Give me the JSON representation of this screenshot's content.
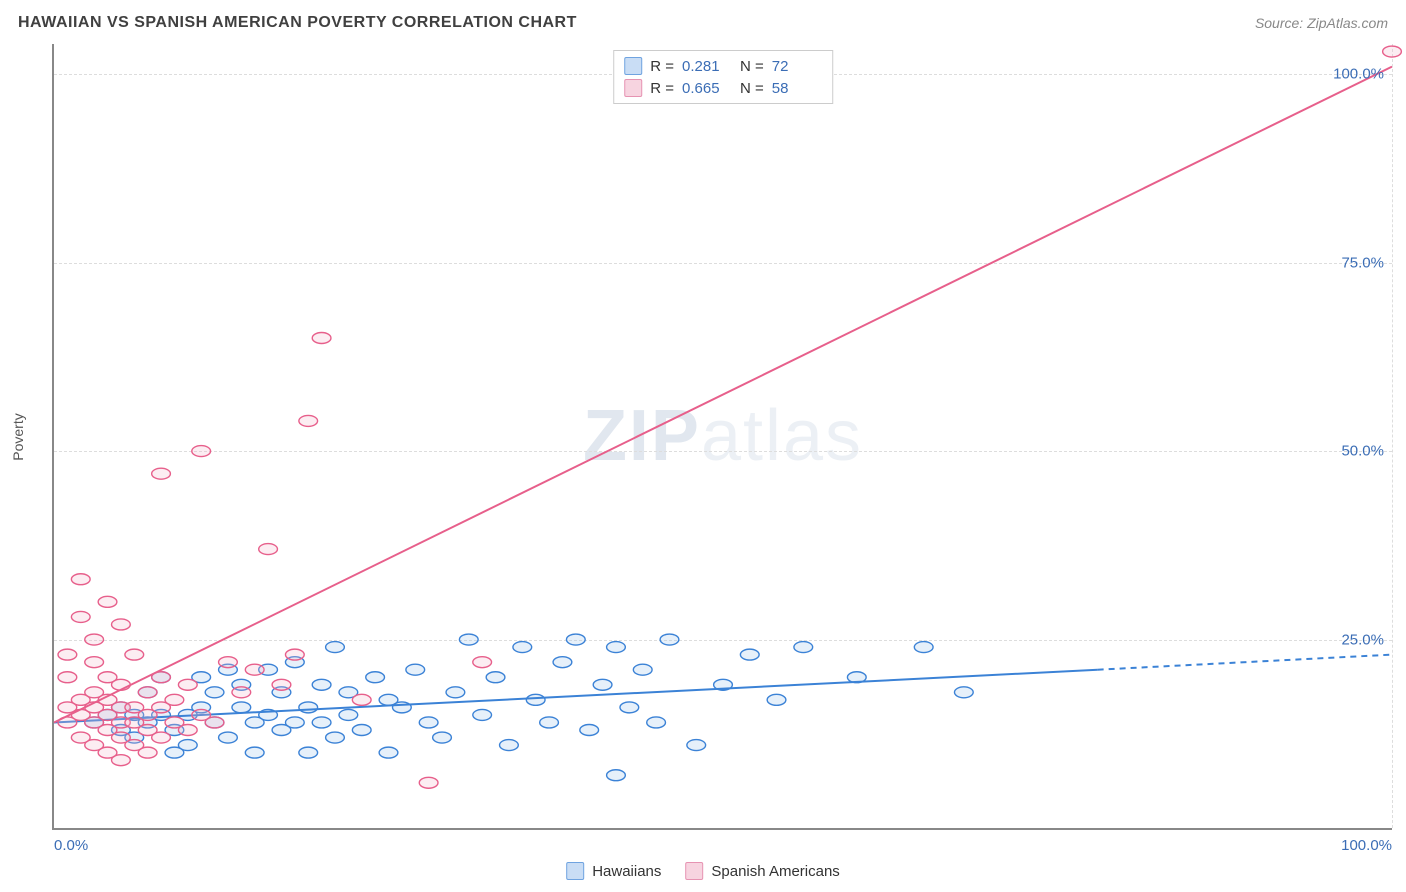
{
  "header": {
    "title": "HAWAIIAN VS SPANISH AMERICAN POVERTY CORRELATION CHART",
    "source": "Source: ZipAtlas.com"
  },
  "ylabel": "Poverty",
  "watermark": {
    "zip": "ZIP",
    "atlas": "atlas"
  },
  "chart": {
    "type": "scatter",
    "xlim": [
      0,
      100
    ],
    "ylim": [
      0,
      104
    ],
    "x_ticks": [
      {
        "value": 0,
        "label": "0.0%"
      },
      {
        "value": 100,
        "label": "100.0%"
      }
    ],
    "y_ticks": [
      {
        "value": 25,
        "label": "25.0%"
      },
      {
        "value": 50,
        "label": "50.0%"
      },
      {
        "value": 75,
        "label": "75.0%"
      },
      {
        "value": 100,
        "label": "100.0%"
      }
    ],
    "grid_color": "#dddddd",
    "grid_dash": "4,4",
    "background_color": "#ffffff",
    "marker_radius": 7,
    "marker_fill_opacity": 0.25,
    "marker_stroke_width": 1.4,
    "trend_line_width": 2
  },
  "series": [
    {
      "key": "hawaiians",
      "label": "Hawaiians",
      "R": "0.281",
      "N": "72",
      "color_stroke": "#3b82d6",
      "color_fill": "#9cc2ec",
      "swatch_fill": "#c9ddf5",
      "swatch_border": "#6fa3e0",
      "trend": {
        "x1": 0,
        "y1": 14,
        "x2": 78,
        "y2": 21,
        "dash_from_x": 78,
        "x3": 100,
        "y3": 23
      },
      "points": [
        [
          3,
          14
        ],
        [
          4,
          15
        ],
        [
          5,
          13
        ],
        [
          5,
          16
        ],
        [
          6,
          15
        ],
        [
          6,
          12
        ],
        [
          7,
          18
        ],
        [
          7,
          14
        ],
        [
          8,
          15
        ],
        [
          8,
          20
        ],
        [
          9,
          13
        ],
        [
          9,
          10
        ],
        [
          10,
          15
        ],
        [
          10,
          11
        ],
        [
          11,
          16
        ],
        [
          11,
          20
        ],
        [
          12,
          14
        ],
        [
          12,
          18
        ],
        [
          13,
          21
        ],
        [
          13,
          12
        ],
        [
          14,
          16
        ],
        [
          14,
          19
        ],
        [
          15,
          14
        ],
        [
          15,
          10
        ],
        [
          16,
          21
        ],
        [
          16,
          15
        ],
        [
          17,
          13
        ],
        [
          17,
          18
        ],
        [
          18,
          14
        ],
        [
          18,
          22
        ],
        [
          19,
          16
        ],
        [
          19,
          10
        ],
        [
          20,
          14
        ],
        [
          20,
          19
        ],
        [
          21,
          12
        ],
        [
          21,
          24
        ],
        [
          22,
          15
        ],
        [
          22,
          18
        ],
        [
          23,
          13
        ],
        [
          24,
          20
        ],
        [
          25,
          10
        ],
        [
          25,
          17
        ],
        [
          26,
          16
        ],
        [
          27,
          21
        ],
        [
          28,
          14
        ],
        [
          29,
          12
        ],
        [
          30,
          18
        ],
        [
          31,
          25
        ],
        [
          32,
          15
        ],
        [
          33,
          20
        ],
        [
          34,
          11
        ],
        [
          35,
          24
        ],
        [
          36,
          17
        ],
        [
          37,
          14
        ],
        [
          38,
          22
        ],
        [
          39,
          25
        ],
        [
          40,
          13
        ],
        [
          41,
          19
        ],
        [
          42,
          24
        ],
        [
          42,
          7
        ],
        [
          43,
          16
        ],
        [
          44,
          21
        ],
        [
          45,
          14
        ],
        [
          46,
          25
        ],
        [
          48,
          11
        ],
        [
          50,
          19
        ],
        [
          52,
          23
        ],
        [
          54,
          17
        ],
        [
          56,
          24
        ],
        [
          60,
          20
        ],
        [
          65,
          24
        ],
        [
          68,
          18
        ]
      ]
    },
    {
      "key": "spanish_americans",
      "label": "Spanish Americans",
      "R": "0.665",
      "N": "58",
      "color_stroke": "#e75f8b",
      "color_fill": "#f5b6cc",
      "swatch_fill": "#f7d4e0",
      "swatch_border": "#e693b2",
      "trend": {
        "x1": 0,
        "y1": 14,
        "x2": 100,
        "y2": 101
      },
      "points": [
        [
          1,
          14
        ],
        [
          1,
          16
        ],
        [
          1,
          20
        ],
        [
          1,
          23
        ],
        [
          2,
          12
        ],
        [
          2,
          15
        ],
        [
          2,
          17
        ],
        [
          2,
          28
        ],
        [
          2,
          33
        ],
        [
          3,
          11
        ],
        [
          3,
          14
        ],
        [
          3,
          16
        ],
        [
          3,
          18
        ],
        [
          3,
          22
        ],
        [
          3,
          25
        ],
        [
          4,
          10
        ],
        [
          4,
          13
        ],
        [
          4,
          15
        ],
        [
          4,
          17
        ],
        [
          4,
          20
        ],
        [
          4,
          30
        ],
        [
          5,
          9
        ],
        [
          5,
          12
        ],
        [
          5,
          14
        ],
        [
          5,
          16
        ],
        [
          5,
          19
        ],
        [
          5,
          27
        ],
        [
          6,
          11
        ],
        [
          6,
          14
        ],
        [
          6,
          16
        ],
        [
          6,
          23
        ],
        [
          7,
          10
        ],
        [
          7,
          13
        ],
        [
          7,
          15
        ],
        [
          7,
          18
        ],
        [
          8,
          12
        ],
        [
          8,
          16
        ],
        [
          8,
          20
        ],
        [
          8,
          47
        ],
        [
          9,
          14
        ],
        [
          9,
          17
        ],
        [
          10,
          13
        ],
        [
          10,
          19
        ],
        [
          11,
          15
        ],
        [
          11,
          50
        ],
        [
          12,
          14
        ],
        [
          13,
          22
        ],
        [
          14,
          18
        ],
        [
          15,
          21
        ],
        [
          16,
          37
        ],
        [
          17,
          19
        ],
        [
          18,
          23
        ],
        [
          19,
          54
        ],
        [
          20,
          65
        ],
        [
          23,
          17
        ],
        [
          28,
          6
        ],
        [
          32,
          22
        ],
        [
          100,
          103
        ]
      ]
    }
  ],
  "legend_top_labels": {
    "R": "R =",
    "N": "N ="
  },
  "legend_bottom": [
    {
      "series": 0
    },
    {
      "series": 1
    }
  ]
}
